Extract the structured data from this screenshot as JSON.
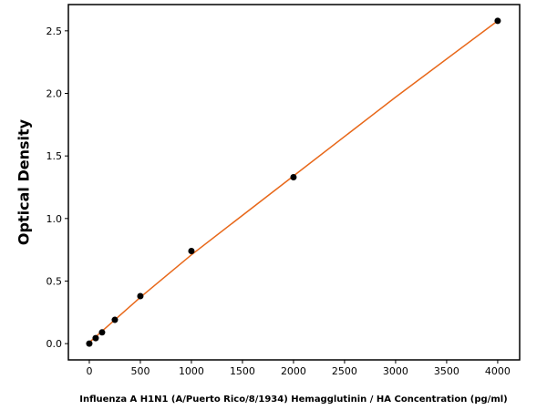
{
  "chart_data": {
    "type": "scatter",
    "x_label": "Influenza A H1N1 (A/Puerto Rico/8/1934) Hemagglutinin / HA Concentration (pg/ml)",
    "y_label": "Optical Density",
    "points": {
      "color": "#000000",
      "x": [
        0,
        62.5,
        125,
        250,
        500,
        1000,
        2000,
        4000
      ],
      "values": [
        0,
        0.044,
        0.09,
        0.19,
        0.38,
        0.74,
        1.33,
        2.58
      ]
    },
    "fit": {
      "color": "#e8681a",
      "x": [
        0,
        500,
        1000,
        2000,
        3000,
        4000
      ],
      "values": [
        0.01,
        0.37,
        0.71,
        1.34,
        1.97,
        2.58
      ]
    },
    "xlim": [
      -205,
      4215
    ],
    "ylim": [
      -0.13,
      2.71
    ],
    "xticks": [
      0,
      500,
      1000,
      1500,
      2000,
      2500,
      3000,
      3500,
      4000
    ],
    "yticks": [
      {
        "value": 0,
        "label": "0.0"
      },
      {
        "value": 0.5,
        "label": "0.5"
      },
      {
        "value": 1,
        "label": "1.0"
      },
      {
        "value": 1.5,
        "label": "1.5"
      },
      {
        "value": 2,
        "label": "2.0"
      },
      {
        "value": 2.5,
        "label": "2.5"
      }
    ]
  }
}
